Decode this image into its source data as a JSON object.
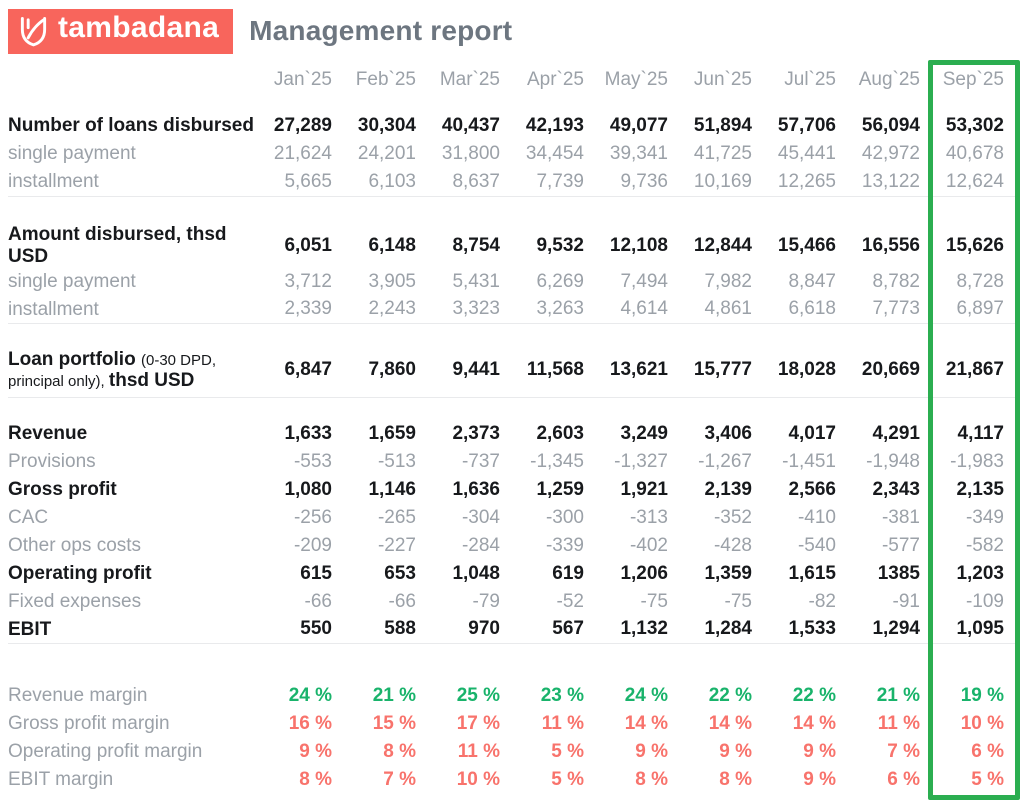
{
  "brand": {
    "logo_text": "tambadana"
  },
  "header": {
    "title": "Management report"
  },
  "colors": {
    "brand_coral": "#F8655C",
    "title_gray": "#6D7680",
    "muted_gray": "#9BA1A8",
    "dark_text": "#17191C",
    "green_text": "#19B36B",
    "red_text": "#F8736C",
    "highlight_border_green": "#2BAE50",
    "separator_gray": "#E9EAEC"
  },
  "table": {
    "months": [
      "Jan`25",
      "Feb`25",
      "Mar`25",
      "Apr`25",
      "May`25",
      "Jun`25",
      "Jul`25",
      "Aug`25",
      "Sep`25"
    ],
    "highlight_month": "Sep`25",
    "highlight_month_index": 8,
    "sections": [
      {
        "name": "loans-disbursed",
        "rows": [
          {
            "id": "number-of-loans-disbursed",
            "value_style": "bold",
            "label_parts": [
              {
                "text": "Number of loans disbursed",
                "style": "bold"
              }
            ],
            "values": [
              "27,289",
              "30,304",
              "40,437",
              "42,193",
              "49,077",
              "51,894",
              "57,706",
              "56,094",
              "53,302"
            ]
          },
          {
            "id": "loans-single-payment",
            "value_style": "muted",
            "label_parts": [
              {
                "text": "single payment",
                "style": "muted"
              }
            ],
            "values": [
              "21,624",
              "24,201",
              "31,800",
              "34,454",
              "39,341",
              "41,725",
              "45,441",
              "42,972",
              "40,678"
            ]
          },
          {
            "id": "loans-installment",
            "value_style": "muted",
            "label_parts": [
              {
                "text": "installment",
                "style": "muted"
              }
            ],
            "values": [
              "5,665",
              "6,103",
              "8,637",
              "7,739",
              "9,736",
              "10,169",
              "12,265",
              "13,122",
              "12,624"
            ]
          }
        ]
      },
      {
        "name": "amount-disbursed",
        "rows": [
          {
            "id": "amount-disbursed",
            "value_style": "bold",
            "label_parts": [
              {
                "text": "Amount disbursed, thsd USD",
                "style": "bold"
              }
            ],
            "values": [
              "6,051",
              "6,148",
              "8,754",
              "9,532",
              "12,108",
              "12,844",
              "15,466",
              "16,556",
              "15,626"
            ]
          },
          {
            "id": "amount-single-payment",
            "value_style": "muted",
            "label_parts": [
              {
                "text": "single payment",
                "style": "muted"
              }
            ],
            "values": [
              "3,712",
              "3,905",
              "5,431",
              "6,269",
              "7,494",
              "7,982",
              "8,847",
              "8,782",
              "8,728"
            ]
          },
          {
            "id": "amount-installment",
            "value_style": "muted",
            "label_parts": [
              {
                "text": "installment",
                "style": "muted"
              }
            ],
            "values": [
              "2,339",
              "2,243",
              "3,323",
              "3,263",
              "4,614",
              "4,861",
              "6,618",
              "7,773",
              "6,897"
            ]
          }
        ]
      },
      {
        "name": "loan-portfolio",
        "rows": [
          {
            "id": "loan-portfolio",
            "value_style": "bold",
            "label_parts": [
              {
                "text": "Loan portfolio ",
                "style": "bold"
              },
              {
                "text": "(0-30 DPD, principal only), ",
                "style": "small"
              },
              {
                "text": "thsd USD",
                "style": "bold"
              }
            ],
            "values": [
              "6,847",
              "7,860",
              "9,441",
              "11,568",
              "13,621",
              "15,777",
              "18,028",
              "20,669",
              "21,867"
            ]
          }
        ]
      },
      {
        "name": "pnl",
        "rows": [
          {
            "id": "revenue",
            "value_style": "bold",
            "label_parts": [
              {
                "text": "Revenue",
                "style": "bold"
              }
            ],
            "values": [
              "1,633",
              "1,659",
              "2,373",
              "2,603",
              "3,249",
              "3,406",
              "4,017",
              "4,291",
              "4,117"
            ]
          },
          {
            "id": "provisions",
            "value_style": "muted",
            "label_parts": [
              {
                "text": "Provisions",
                "style": "muted"
              }
            ],
            "values": [
              "-553",
              "-513",
              "-737",
              "-1,345",
              "-1,327",
              "-1,267",
              "-1,451",
              "-1,948",
              "-1,983"
            ]
          },
          {
            "id": "gross-profit",
            "value_style": "bold",
            "label_parts": [
              {
                "text": "Gross profit",
                "style": "bold"
              }
            ],
            "values": [
              "1,080",
              "1,146",
              "1,636",
              "1,259",
              "1,921",
              "2,139",
              "2,566",
              "2,343",
              "2,135"
            ]
          },
          {
            "id": "cac",
            "value_style": "muted",
            "label_parts": [
              {
                "text": "CAC",
                "style": "muted"
              }
            ],
            "values": [
              "-256",
              "-265",
              "-304",
              "-300",
              "-313",
              "-352",
              "-410",
              "-381",
              "-349"
            ]
          },
          {
            "id": "other-ops-costs",
            "value_style": "muted",
            "label_parts": [
              {
                "text": "Other ops costs",
                "style": "muted"
              }
            ],
            "values": [
              "-209",
              "-227",
              "-284",
              "-339",
              "-402",
              "-428",
              "-540",
              "-577",
              "-582"
            ]
          },
          {
            "id": "operating-profit",
            "value_style": "bold",
            "label_parts": [
              {
                "text": "Operating profit",
                "style": "bold"
              }
            ],
            "values": [
              "615",
              "653",
              "1,048",
              "619",
              "1,206",
              "1,359",
              "1,615",
              "1385",
              "1,203"
            ]
          },
          {
            "id": "fixed-expenses",
            "value_style": "muted",
            "label_parts": [
              {
                "text": "Fixed expenses",
                "style": "muted"
              }
            ],
            "values": [
              "-66",
              "-66",
              "-79",
              "-52",
              "-75",
              "-75",
              "-82",
              "-91",
              "-109"
            ]
          },
          {
            "id": "ebit",
            "value_style": "bold",
            "label_parts": [
              {
                "text": "EBIT",
                "style": "bold"
              }
            ],
            "values": [
              "550",
              "588",
              "970",
              "567",
              "1,132",
              "1,284",
              "1,533",
              "1,294",
              "1,095"
            ]
          }
        ]
      },
      {
        "name": "margins",
        "rows": [
          {
            "id": "revenue-margin",
            "value_style": "green",
            "label_parts": [
              {
                "text": "Revenue margin",
                "style": "muted"
              }
            ],
            "values": [
              "24 %",
              "21 %",
              "25 %",
              "23 %",
              "24 %",
              "22 %",
              "22 %",
              "21 %",
              "19 %"
            ]
          },
          {
            "id": "gross-profit-margin",
            "value_style": "red",
            "label_parts": [
              {
                "text": "Gross profit margin",
                "style": "muted"
              }
            ],
            "values": [
              "16 %",
              "15 %",
              "17 %",
              "11 %",
              "14 %",
              "14 %",
              "14 %",
              "11 %",
              "10 %"
            ]
          },
          {
            "id": "operating-profit-margin",
            "value_style": "red",
            "label_parts": [
              {
                "text": "Operating profit margin",
                "style": "muted"
              }
            ],
            "values": [
              "9 %",
              "8 %",
              "11 %",
              "5 %",
              "9 %",
              "9 %",
              "9 %",
              "7 %",
              "6 %"
            ]
          },
          {
            "id": "ebit-margin",
            "value_style": "red",
            "label_parts": [
              {
                "text": "EBIT margin",
                "style": "muted"
              }
            ],
            "values": [
              "8 %",
              "7 %",
              "10 %",
              "5 %",
              "8 %",
              "8 %",
              "9 %",
              "6 %",
              "5 %"
            ]
          }
        ]
      }
    ]
  }
}
